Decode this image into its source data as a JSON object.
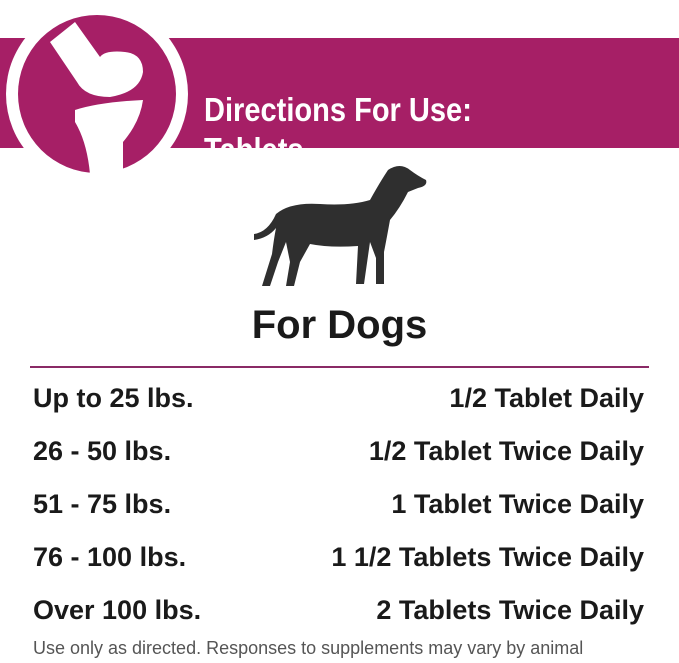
{
  "header": {
    "title_line1": "Directions For Use:",
    "title_line2": "Tablets",
    "logo_icon": "joint-icon",
    "brand_color": "#a61f66"
  },
  "section": {
    "icon": "dog-icon",
    "heading": "For Dogs"
  },
  "dosage": [
    {
      "weight": "Up to 25 lbs.",
      "dose": "1/2 Tablet Daily"
    },
    {
      "weight": "26 - 50 lbs.",
      "dose": "1/2 Tablet Twice Daily"
    },
    {
      "weight": "51 - 75 lbs.",
      "dose": "1 Tablet Twice Daily"
    },
    {
      "weight": "76 - 100 lbs.",
      "dose": "1 1/2 Tablets Twice Daily"
    },
    {
      "weight": "Over 100 lbs.",
      "dose": "2 Tablets Twice Daily"
    }
  ],
  "footer": {
    "note": "Use only as directed. Responses to supplements may vary by animal"
  }
}
